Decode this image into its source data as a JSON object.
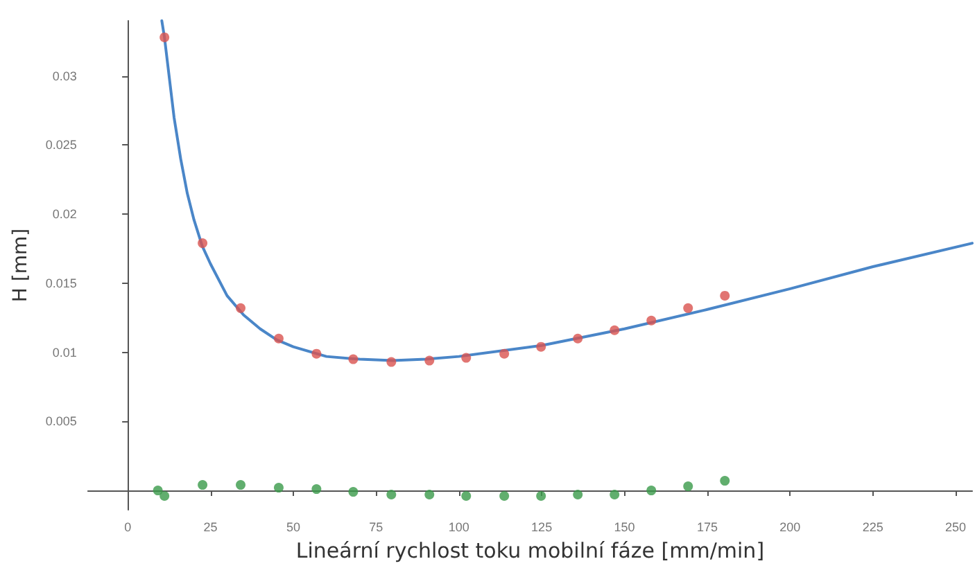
{
  "chart_data": {
    "type": "scatter",
    "xlabel": "Lineární rychlost toku mobilní fáze [mm/min]",
    "ylabel": "H [mm]",
    "xlim": [
      -12,
      255
    ],
    "xticks": [
      0,
      25,
      50,
      75,
      100,
      125,
      150,
      175,
      200,
      225,
      250
    ],
    "ylim": [
      -0.0014,
      0.034
    ],
    "yticks": [
      0.005,
      0.01,
      0.015,
      0.02,
      0.025,
      0.03
    ],
    "marker": "circle",
    "series": [
      {
        "color": "#d9534f",
        "x": [
          11.1,
          22.6,
          34.1,
          45.6,
          57,
          68.1,
          79.6,
          91.1,
          102.2,
          113.7,
          124.8,
          135.9,
          147,
          158.1,
          169.2,
          180.3
        ],
        "values": [
          0.0328,
          0.0179,
          0.0132,
          0.011,
          0.0099,
          0.0095,
          0.0093,
          0.0094,
          0.0096,
          0.0099,
          0.0104,
          0.011,
          0.0116,
          0.0123,
          0.0132,
          0.0141
        ]
      },
      {
        "color": "#3a9a4a",
        "x": [
          9.1,
          11.1,
          22.6,
          34.1,
          45.6,
          57,
          68.1,
          79.6,
          91.1,
          102.2,
          113.7,
          124.8,
          135.9,
          147,
          158.1,
          169.2,
          180.3
        ],
        "values": [
          0,
          -0.0004,
          0.0004,
          0.0004,
          0.0002,
          0.0001,
          -0.0001,
          -0.0003,
          -0.0003,
          -0.0004,
          -0.0004,
          -0.0004,
          -0.0003,
          -0.0003,
          0,
          0.0003,
          0.0007
        ]
      },
      {
        "type": "line",
        "color": "#4a86c8",
        "marker": "none",
        "line_style": "solid",
        "x": [
          10.3,
          11.1,
          12,
          14,
          16,
          18,
          20,
          22.5,
          25,
          30,
          35,
          40,
          45,
          50,
          60,
          70,
          80,
          90,
          100,
          125,
          150,
          175,
          200,
          225,
          255
        ],
        "values": [
          0.034,
          0.0328,
          0.031,
          0.027,
          0.024,
          0.0215,
          0.0196,
          0.0177,
          0.0164,
          0.0141,
          0.0127,
          0.0117,
          0.0109,
          0.0104,
          0.0097,
          0.0095,
          0.0094,
          0.0095,
          0.0097,
          0.0105,
          0.0117,
          0.0131,
          0.0146,
          0.0162,
          0.0179
        ]
      }
    ]
  }
}
